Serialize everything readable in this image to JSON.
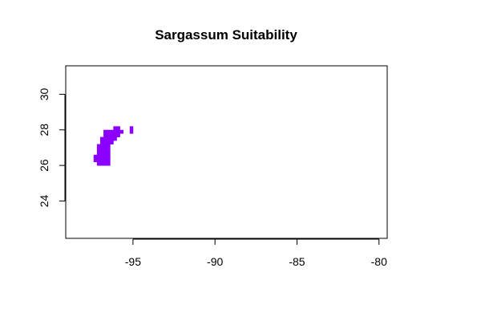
{
  "chart_data": {
    "type": "map",
    "title": "Sargassum Suitability",
    "xlabel": "",
    "ylabel": "",
    "xlim": [
      -99.1,
      -79.5
    ],
    "ylim": [
      21.9,
      31.6
    ],
    "x_ticks": [
      -95,
      -90,
      -85,
      -80
    ],
    "x_tick_labels": [
      "-95",
      "-90",
      "-85",
      "-80"
    ],
    "y_ticks": [
      24,
      26,
      28,
      30
    ],
    "y_tick_labels": [
      "24",
      "26",
      "28",
      "30"
    ],
    "grid": false,
    "legend": "none",
    "raster_color": "#8b00ff",
    "cell_size_deg": 0.2,
    "suitable_cells": [
      [
        -96.1,
        28.1
      ],
      [
        -95.9,
        28.1
      ],
      [
        -95.1,
        28.1
      ],
      [
        -96.7,
        27.9
      ],
      [
        -96.5,
        27.9
      ],
      [
        -96.3,
        27.9
      ],
      [
        -96.1,
        27.9
      ],
      [
        -95.9,
        27.9
      ],
      [
        -95.7,
        27.9
      ],
      [
        -95.1,
        27.9
      ],
      [
        -96.7,
        27.7
      ],
      [
        -96.5,
        27.7
      ],
      [
        -96.3,
        27.7
      ],
      [
        -96.1,
        27.7
      ],
      [
        -95.9,
        27.7
      ],
      [
        -96.9,
        27.5
      ],
      [
        -96.7,
        27.5
      ],
      [
        -96.5,
        27.5
      ],
      [
        -96.3,
        27.5
      ],
      [
        -96.1,
        27.5
      ],
      [
        -96.9,
        27.3
      ],
      [
        -96.7,
        27.3
      ],
      [
        -96.5,
        27.3
      ],
      [
        -96.3,
        27.3
      ],
      [
        -97.1,
        27.1
      ],
      [
        -96.9,
        27.1
      ],
      [
        -96.7,
        27.1
      ],
      [
        -96.5,
        27.1
      ],
      [
        -97.1,
        26.9
      ],
      [
        -96.9,
        26.9
      ],
      [
        -96.7,
        26.9
      ],
      [
        -96.5,
        26.9
      ],
      [
        -97.1,
        26.7
      ],
      [
        -96.9,
        26.7
      ],
      [
        -96.7,
        26.7
      ],
      [
        -96.5,
        26.7
      ],
      [
        -97.3,
        26.5
      ],
      [
        -97.1,
        26.5
      ],
      [
        -96.9,
        26.5
      ],
      [
        -96.7,
        26.5
      ],
      [
        -96.5,
        26.5
      ],
      [
        -97.3,
        26.3
      ],
      [
        -97.1,
        26.3
      ],
      [
        -96.9,
        26.3
      ],
      [
        -96.7,
        26.3
      ],
      [
        -96.5,
        26.3
      ],
      [
        -97.1,
        26.1
      ],
      [
        -96.9,
        26.1
      ],
      [
        -96.7,
        26.1
      ],
      [
        -96.5,
        26.1
      ]
    ]
  }
}
